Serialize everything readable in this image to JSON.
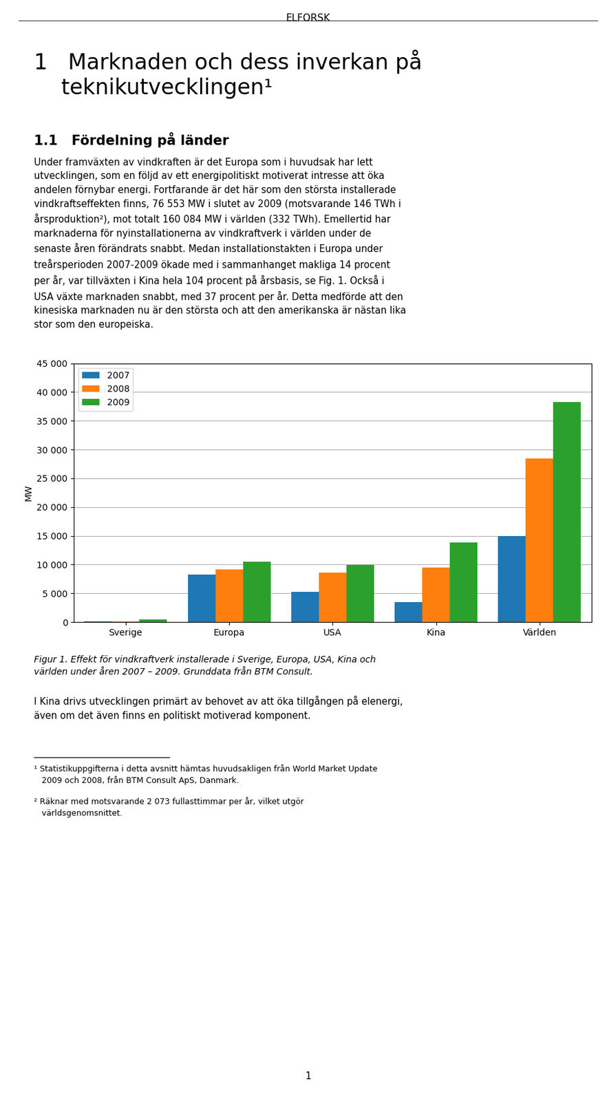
{
  "chart_data": {
    "type": "bar",
    "categories": [
      "Sverige",
      "Europa",
      "USA",
      "Kina",
      "Världen"
    ],
    "series": [
      {
        "name": "2007",
        "values": [
          150,
          8300,
          5300,
          3500,
          15000
        ]
      },
      {
        "name": "2008",
        "values": [
          100,
          9200,
          8600,
          9500,
          28500
        ]
      },
      {
        "name": "2009",
        "values": [
          510,
          10500,
          9900,
          13800,
          38300
        ]
      }
    ],
    "y_label": "MW",
    "ylim": [
      0,
      45000
    ],
    "yticks": [
      0,
      {
        "value": 5000,
        "label": "5 000"
      },
      {
        "value": 10000,
        "label": "10 000"
      },
      {
        "value": 15000,
        "label": "15 000"
      },
      {
        "value": 20000,
        "label": "20 000"
      },
      {
        "value": 25000,
        "label": "25 000"
      },
      {
        "value": 30000,
        "label": "30 000"
      },
      {
        "value": 35000,
        "label": "35 000"
      },
      {
        "value": 40000,
        "label": "40 000"
      },
      {
        "value": 45000,
        "label": "45 000"
      }
    ],
    "grid": true,
    "legend": "upper left",
    "annotations": [
      "ELFORSK",
      "1   Marknaden och dess inverkan på\n    teknikutvecklingen¹",
      "1.1   Fördelning på länder",
      "Under framväxten av vindkraften är det Europa som i huvudsak har lett\nutvecklingen, som en följd av ett energipolitiskt motiverat intresse att öka\nandelen förnybar energi. Fortfarande är det här som den största installerade\nvindkraftseffekten finns, 76 553 MW i slutet av 2009 (motsvarande 146 TWh i\nårsproduktion²), mot totalt 160 084 MW i världen (332 TWh). Emellertid har\nmarknaderna för nyinstallationerna av vindkraftverk i världen under de\nsenaste åren förändrats snabbt. Medan installationstakten i Europa under\ntreårsperioden 2007-2009 ökade med i sammanhanget makliga 14 procent\nper år, var tillväxten i Kina hela 104 procent på årsbasis, se Fig. 1. Också i\nUSA växte marknaden snabbt, med 37 procent per år. Detta medförde att den\nkinesiska marknaden nu är den största och att den amerikanska är nästan lika\nstor som den europeiska.",
      "Figur 1. Effekt för vindkraftverk installerade i Sverige, Europa, USA, Kina och\nvärlden under åren 2007 – 2009. Grunddata från BTM Consult.",
      "I Kina drivs utvecklingen primärt av behovet av att öka tillgången på elenergi,\näven om det även finns en politiskt motiverad komponent.",
      "¹ Statistikuppgifterna i detta avsnitt hämtas huvudsakligen från World Market Update\n   2009 och 2008, från BTM Consult ApS, Danmark.",
      "² Räknar med motsvarande 2 073 fullasttimmar per år, vilket utgör\n   världsgenomsnittet.",
      "1"
    ]
  }
}
